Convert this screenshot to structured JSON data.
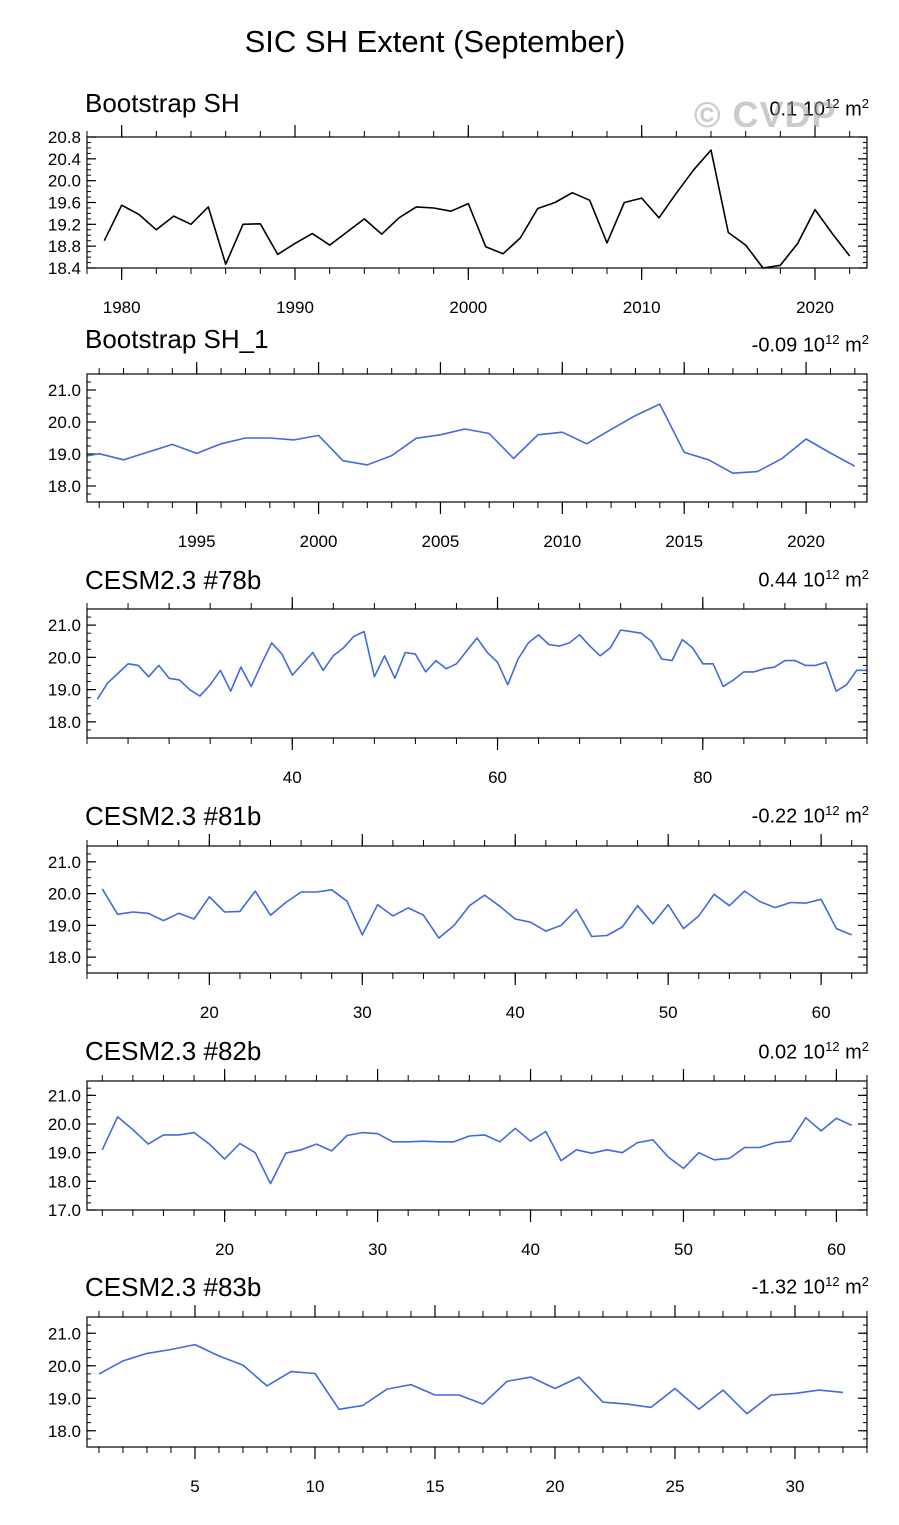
{
  "figure_title": "SIC SH Extent (September)",
  "watermark": "© CVDP",
  "chart_data": [
    {
      "type": "line",
      "title": "Bootstrap SH",
      "stat_value": "0.1",
      "stat_unit": "10",
      "stat_exp": "12",
      "stat_suffix": "m",
      "stat_suffix_exp": "2",
      "line_color": "#000000",
      "xlim": [
        1978,
        2023
      ],
      "ylim": [
        18.4,
        20.8
      ],
      "yticks": [
        18.4,
        18.8,
        19.2,
        19.6,
        20.0,
        20.4,
        20.8
      ],
      "ytick_labels": [
        "18.4",
        "18.8",
        "19.2",
        "19.6",
        "20.0",
        "20.4",
        "20.8"
      ],
      "xticks": [
        1980,
        1990,
        2000,
        2010,
        2020
      ],
      "xtick_labels": [
        "1980",
        "1990",
        "2000",
        "2010",
        "2020"
      ],
      "x_minor_step": 2,
      "y_minor_step": 0.1,
      "x": [
        1979,
        1980,
        1981,
        1982,
        1983,
        1984,
        1985,
        1986,
        1987,
        1988,
        1989,
        1990,
        1991,
        1992,
        1993,
        1994,
        1995,
        1996,
        1997,
        1998,
        1999,
        2000,
        2001,
        2002,
        2003,
        2004,
        2005,
        2006,
        2007,
        2008,
        2009,
        2010,
        2011,
        2012,
        2013,
        2014,
        2015,
        2016,
        2017,
        2018,
        2019,
        2020,
        2021,
        2022
      ],
      "values": [
        18.9,
        19.55,
        19.38,
        19.1,
        19.35,
        19.2,
        19.52,
        18.47,
        19.2,
        19.21,
        18.65,
        18.85,
        19.03,
        18.82,
        19.06,
        19.3,
        19.02,
        19.32,
        19.52,
        19.5,
        19.44,
        19.58,
        18.79,
        18.66,
        18.95,
        19.49,
        19.6,
        19.78,
        19.64,
        18.86,
        19.6,
        19.68,
        19.32,
        19.77,
        20.2,
        20.56,
        19.05,
        18.82,
        18.4,
        18.45,
        18.85,
        19.47,
        19.03,
        18.62
      ]
    },
    {
      "type": "line",
      "title": "Bootstrap SH_1",
      "stat_value": "-0.09",
      "stat_unit": "10",
      "stat_exp": "12",
      "stat_suffix": "m",
      "stat_suffix_exp": "2",
      "line_color": "#4169e1",
      "xlim": [
        1990.5,
        2022.5
      ],
      "ylim": [
        17.5,
        21.5
      ],
      "yticks": [
        18.0,
        19.0,
        20.0,
        21.0
      ],
      "ytick_labels": [
        "18.0",
        "19.0",
        "20.0",
        "21.0"
      ],
      "xticks": [
        1995,
        2000,
        2005,
        2010,
        2015,
        2020
      ],
      "xtick_labels": [
        "1995",
        "2000",
        "2005",
        "2010",
        "2015",
        "2020"
      ],
      "x_minor_step": 1,
      "y_minor_step": 0.25,
      "x": [
        1990.5,
        1991,
        1992,
        1993,
        1994,
        1995,
        1996,
        1997,
        1998,
        1999,
        2000,
        2001,
        2002,
        2003,
        2004,
        2005,
        2006,
        2007,
        2008,
        2009,
        2010,
        2011,
        2012,
        2013,
        2014,
        2015,
        2016,
        2017,
        2018,
        2019,
        2020,
        2021,
        2022
      ],
      "values": [
        18.94,
        19.01,
        18.82,
        19.06,
        19.3,
        19.02,
        19.32,
        19.5,
        19.5,
        19.44,
        19.58,
        18.79,
        18.66,
        18.95,
        19.49,
        19.6,
        19.78,
        19.64,
        18.86,
        19.6,
        19.68,
        19.32,
        19.77,
        20.2,
        20.56,
        19.05,
        18.82,
        18.4,
        18.45,
        18.85,
        19.47,
        19.03,
        18.62
      ]
    },
    {
      "type": "line",
      "title": "CESM2.3 #78b",
      "stat_value": "0.44",
      "stat_unit": "10",
      "stat_exp": "12",
      "stat_suffix": "m",
      "stat_suffix_exp": "2",
      "line_color": "#4169e1",
      "xlim": [
        20,
        96
      ],
      "ylim": [
        17.5,
        21.5
      ],
      "yticks": [
        18.0,
        19.0,
        20.0,
        21.0
      ],
      "ytick_labels": [
        "18.0",
        "19.0",
        "20.0",
        "21.0"
      ],
      "xticks": [
        40,
        60,
        80
      ],
      "xtick_labels": [
        "40",
        "60",
        "80"
      ],
      "x_minor_step": 4,
      "y_minor_step": 0.25,
      "x": [
        21,
        22,
        23,
        24,
        25,
        26,
        27,
        28,
        29,
        30,
        31,
        32,
        33,
        34,
        35,
        36,
        37,
        38,
        39,
        40,
        41,
        42,
        43,
        44,
        45,
        46,
        47,
        48,
        49,
        50,
        51,
        52,
        53,
        54,
        55,
        56,
        57,
        58,
        59,
        60,
        61,
        62,
        63,
        64,
        65,
        66,
        67,
        68,
        69,
        70,
        71,
        72,
        73,
        74,
        75,
        76,
        77,
        78,
        79,
        80,
        81,
        82,
        83,
        84,
        85,
        86,
        87,
        88,
        89,
        90,
        91,
        92,
        93,
        94,
        95,
        96
      ],
      "values": [
        18.7,
        19.2,
        19.5,
        19.8,
        19.75,
        19.4,
        19.75,
        19.35,
        19.3,
        19.0,
        18.8,
        19.15,
        19.6,
        18.95,
        19.7,
        19.1,
        19.8,
        20.45,
        20.1,
        19.45,
        19.8,
        20.15,
        19.6,
        20.05,
        20.3,
        20.65,
        20.8,
        19.4,
        20.05,
        19.35,
        20.15,
        20.1,
        19.55,
        19.9,
        19.65,
        19.8,
        20.2,
        20.6,
        20.15,
        19.85,
        19.15,
        19.95,
        20.45,
        20.7,
        20.4,
        20.35,
        20.45,
        20.7,
        20.35,
        20.05,
        20.3,
        20.85,
        20.8,
        20.75,
        20.5,
        19.95,
        19.9,
        20.55,
        20.3,
        19.8,
        19.8,
        19.1,
        19.3,
        19.55,
        19.55,
        19.65,
        19.7,
        19.9,
        19.9,
        19.75,
        19.75,
        19.85,
        18.95,
        19.15,
        19.6,
        19.6
      ]
    },
    {
      "type": "line",
      "title": "CESM2.3 #81b",
      "stat_value": "-0.22",
      "stat_unit": "10",
      "stat_exp": "12",
      "stat_suffix": "m",
      "stat_suffix_exp": "2",
      "line_color": "#4169e1",
      "xlim": [
        12,
        63
      ],
      "ylim": [
        17.5,
        21.5
      ],
      "yticks": [
        18.0,
        19.0,
        20.0,
        21.0
      ],
      "ytick_labels": [
        "18.0",
        "19.0",
        "20.0",
        "21.0"
      ],
      "xticks": [
        20,
        30,
        40,
        50,
        60
      ],
      "xtick_labels": [
        "20",
        "30",
        "40",
        "50",
        "60"
      ],
      "x_minor_step": 2,
      "y_minor_step": 0.25,
      "x": [
        13,
        14,
        15,
        16,
        17,
        18,
        19,
        20,
        21,
        22,
        23,
        24,
        25,
        26,
        27,
        28,
        29,
        30,
        31,
        32,
        33,
        34,
        35,
        36,
        37,
        38,
        39,
        40,
        41,
        42,
        43,
        44,
        45,
        46,
        47,
        48,
        49,
        50,
        51,
        52,
        53,
        54,
        55,
        56,
        57,
        58,
        59,
        60,
        61,
        62
      ],
      "values": [
        20.15,
        19.35,
        19.42,
        19.38,
        19.15,
        19.38,
        19.2,
        19.9,
        19.42,
        19.44,
        20.08,
        19.32,
        19.72,
        20.05,
        20.05,
        20.12,
        19.76,
        18.7,
        19.65,
        19.3,
        19.55,
        19.32,
        18.6,
        19.0,
        19.62,
        19.95,
        19.6,
        19.2,
        19.1,
        18.82,
        19.0,
        19.5,
        18.65,
        18.68,
        18.95,
        19.62,
        19.05,
        19.65,
        18.9,
        19.3,
        19.98,
        19.62,
        20.08,
        19.75,
        19.56,
        19.72,
        19.7,
        19.82,
        18.9,
        18.7
      ]
    },
    {
      "type": "line",
      "title": "CESM2.3 #82b",
      "stat_value": "0.02",
      "stat_unit": "10",
      "stat_exp": "12",
      "stat_suffix": "m",
      "stat_suffix_exp": "2",
      "line_color": "#4169e1",
      "xlim": [
        11,
        62
      ],
      "ylim": [
        17.0,
        21.5
      ],
      "yticks": [
        17.0,
        18.0,
        19.0,
        20.0,
        21.0
      ],
      "ytick_labels": [
        "17.0",
        "18.0",
        "19.0",
        "20.0",
        "21.0"
      ],
      "xticks": [
        20,
        30,
        40,
        50,
        60
      ],
      "xtick_labels": [
        "20",
        "30",
        "40",
        "50",
        "60"
      ],
      "x_minor_step": 2,
      "y_minor_step": 0.25,
      "x": [
        12,
        13,
        14,
        15,
        16,
        17,
        18,
        19,
        20,
        21,
        22,
        23,
        24,
        25,
        26,
        27,
        28,
        29,
        30,
        31,
        32,
        33,
        34,
        35,
        36,
        37,
        38,
        39,
        40,
        41,
        42,
        43,
        44,
        45,
        46,
        47,
        48,
        49,
        50,
        51,
        52,
        53,
        54,
        55,
        56,
        57,
        58,
        59,
        60,
        61
      ],
      "values": [
        19.1,
        20.25,
        19.8,
        19.3,
        19.62,
        19.62,
        19.7,
        19.3,
        18.78,
        19.32,
        19.0,
        17.92,
        18.98,
        19.1,
        19.3,
        19.06,
        19.6,
        19.7,
        19.66,
        19.38,
        19.38,
        19.4,
        19.38,
        19.38,
        19.58,
        19.62,
        19.38,
        19.85,
        19.4,
        19.74,
        18.72,
        19.1,
        18.98,
        19.1,
        19.0,
        19.35,
        19.45,
        18.85,
        18.45,
        19.0,
        18.75,
        18.8,
        19.18,
        19.18,
        19.35,
        19.4,
        20.22,
        19.76,
        20.2,
        19.95
      ]
    },
    {
      "type": "line",
      "title": "CESM2.3 #83b",
      "stat_value": "-1.32",
      "stat_unit": "10",
      "stat_exp": "12",
      "stat_suffix": "m",
      "stat_suffix_exp": "2",
      "line_color": "#4169e1",
      "xlim": [
        0.5,
        33
      ],
      "ylim": [
        17.5,
        21.5
      ],
      "yticks": [
        18.0,
        19.0,
        20.0,
        21.0
      ],
      "ytick_labels": [
        "18.0",
        "19.0",
        "20.0",
        "21.0"
      ],
      "xticks": [
        5,
        10,
        15,
        20,
        25,
        30
      ],
      "xtick_labels": [
        "5",
        "10",
        "15",
        "20",
        "25",
        "30"
      ],
      "x_minor_step": 1,
      "y_minor_step": 0.25,
      "x": [
        1,
        2,
        3,
        4,
        5,
        6,
        7,
        8,
        9,
        10,
        11,
        12,
        13,
        14,
        15,
        16,
        17,
        18,
        19,
        20,
        21,
        22,
        23,
        24,
        25,
        26,
        27,
        28,
        29,
        30,
        31,
        32
      ],
      "values": [
        19.75,
        20.15,
        20.38,
        20.5,
        20.65,
        20.3,
        20.02,
        19.38,
        19.82,
        19.76,
        18.66,
        18.78,
        19.28,
        19.42,
        19.1,
        19.1,
        18.82,
        19.52,
        19.65,
        19.3,
        19.65,
        18.88,
        18.82,
        18.72,
        19.3,
        18.66,
        19.25,
        18.52,
        19.1,
        19.15,
        19.25,
        19.18
      ]
    }
  ]
}
